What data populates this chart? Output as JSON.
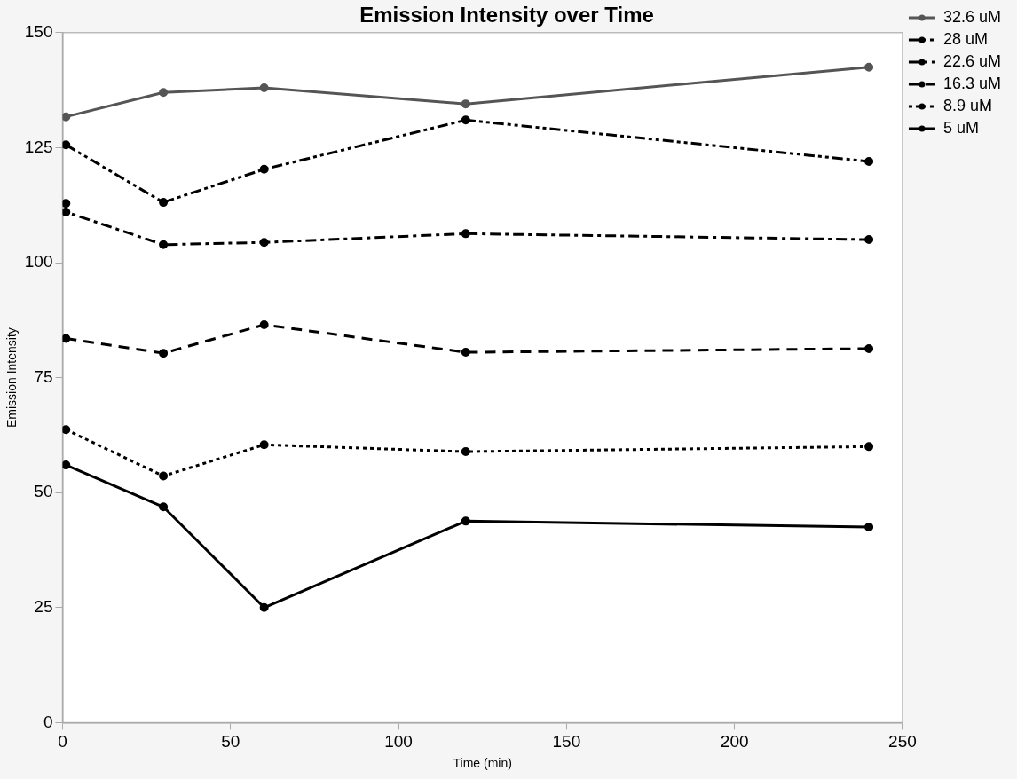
{
  "chart_data": {
    "type": "line",
    "title": "Emission Intensity over Time",
    "xlabel": "Time (min)",
    "ylabel": "Emission Intensity",
    "xlim": [
      0,
      250
    ],
    "xticks": [
      0,
      50,
      100,
      150,
      200,
      250
    ],
    "ylim": [
      0,
      150
    ],
    "yticks": [
      0,
      25,
      50,
      75,
      100,
      125,
      150
    ],
    "grid": false,
    "legend": "top right",
    "marker": "circle",
    "series": [
      {
        "name": "32.6 uM",
        "color": "#555555",
        "line_style": "solid",
        "x": [
          1,
          30,
          60,
          120,
          240
        ],
        "values": [
          131.7,
          137.0,
          138.0,
          134.5,
          142.5
        ]
      },
      {
        "name": "28 uM",
        "color": "#000000",
        "line_style": "dashdotdot",
        "x": [
          1,
          30,
          60,
          120,
          240
        ],
        "values": [
          125.6,
          113.1,
          120.3,
          131.0,
          122.0
        ]
      },
      {
        "name": "22.6 uM",
        "color": "#000000",
        "line_style": "dashdot",
        "x": [
          1,
          1,
          30,
          60,
          120,
          240
        ],
        "values": [
          112.9,
          111.0,
          103.9,
          104.4,
          106.3,
          105.0
        ]
      },
      {
        "name": "16.3 uM",
        "color": "#000000",
        "line_style": "dashed",
        "x": [
          1,
          30,
          60,
          120,
          240
        ],
        "values": [
          83.5,
          80.3,
          86.5,
          80.5,
          81.3
        ]
      },
      {
        "name": "8.9 uM",
        "color": "#000000",
        "line_style": "dotted",
        "x": [
          1,
          30,
          60,
          120,
          240
        ],
        "values": [
          63.7,
          53.6,
          60.4,
          58.9,
          60.0
        ]
      },
      {
        "name": "5 uM",
        "color": "#000000",
        "line_style": "solid",
        "x": [
          1,
          30,
          60,
          120,
          240
        ],
        "values": [
          56.0,
          46.9,
          25.0,
          43.8,
          42.5
        ]
      }
    ]
  }
}
